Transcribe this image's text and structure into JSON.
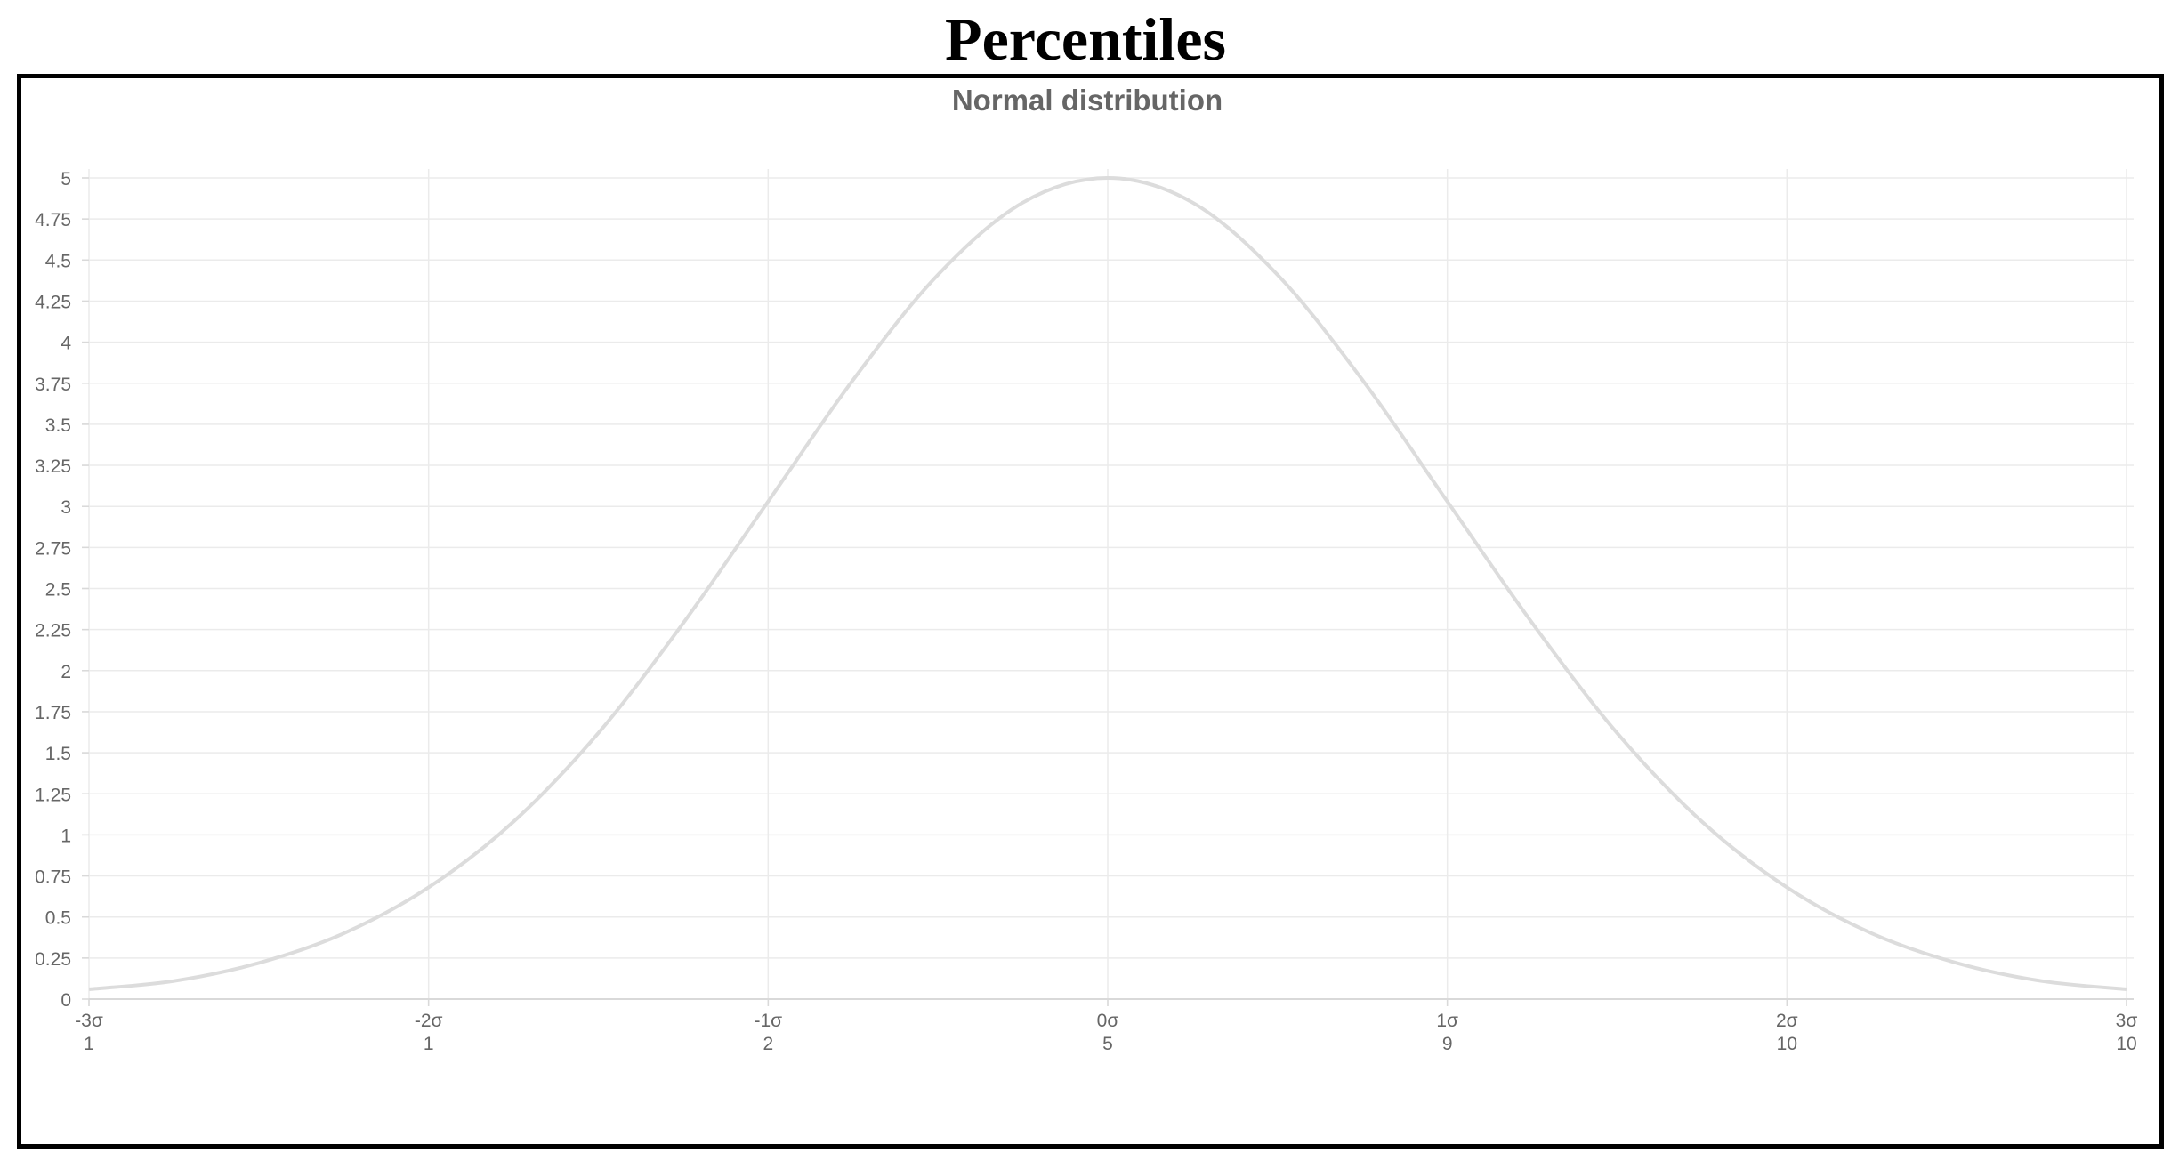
{
  "page": {
    "title": "Percentiles"
  },
  "chart_data": {
    "type": "line",
    "title": "",
    "subtitle": "Normal distribution",
    "xlabel": "",
    "ylabel": "",
    "ylim": [
      0,
      5
    ],
    "y_ticks": [
      "0",
      "0.25",
      "0.5",
      "0.75",
      "1",
      "1.25",
      "1.5",
      "1.75",
      "2",
      "2.25",
      "2.5",
      "2.75",
      "3",
      "3.25",
      "3.5",
      "3.75",
      "4",
      "4.25",
      "4.5",
      "4.75",
      "5"
    ],
    "x_range": [
      -3,
      3
    ],
    "x_ticks": [
      {
        "value": -3,
        "sigma_label": "-3σ",
        "percentile_label": "1"
      },
      {
        "value": -2,
        "sigma_label": "-2σ",
        "percentile_label": "1"
      },
      {
        "value": -1,
        "sigma_label": "-1σ",
        "percentile_label": "2"
      },
      {
        "value": 0,
        "sigma_label": "0σ",
        "percentile_label": "5"
      },
      {
        "value": 1,
        "sigma_label": "1σ",
        "percentile_label": "9"
      },
      {
        "value": 2,
        "sigma_label": "2σ",
        "percentile_label": "10"
      },
      {
        "value": 3,
        "sigma_label": "3σ",
        "percentile_label": "10"
      }
    ],
    "series": [
      {
        "color": "#dcdcdc",
        "x": [
          -3,
          -2.75,
          -2.5,
          -2.25,
          -2,
          -1.75,
          -1.5,
          -1.25,
          -1,
          -0.75,
          -0.5,
          -0.25,
          0,
          0.25,
          0.5,
          0.75,
          1,
          1.25,
          1.5,
          1.75,
          2,
          2.25,
          2.5,
          2.75,
          3
        ],
        "values": [
          0.06,
          0.11,
          0.22,
          0.4,
          0.68,
          1.08,
          1.62,
          2.29,
          3.03,
          3.77,
          4.41,
          4.85,
          5.0,
          4.85,
          4.41,
          3.77,
          3.03,
          2.29,
          1.62,
          1.08,
          0.68,
          0.4,
          0.22,
          0.11,
          0.06
        ]
      }
    ],
    "grid": true,
    "legend": "none"
  }
}
